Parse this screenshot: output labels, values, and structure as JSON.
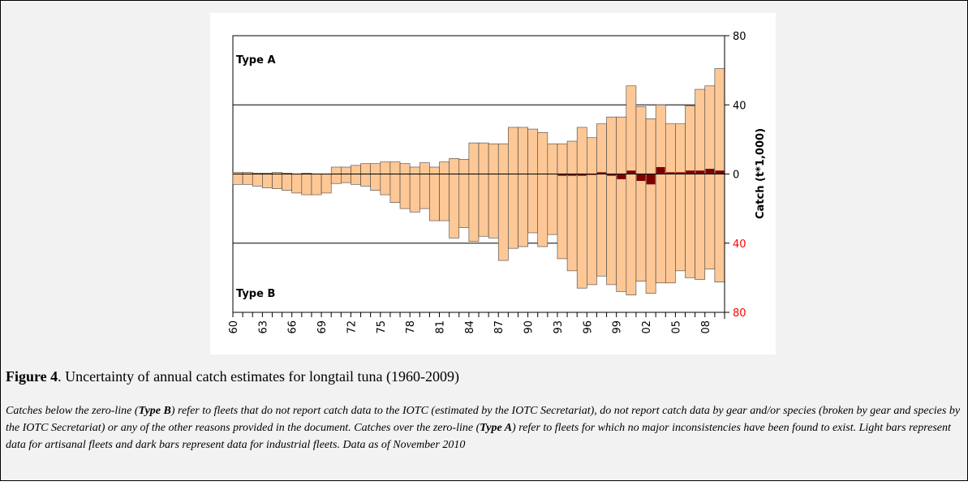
{
  "chart_data": {
    "type": "bar",
    "categories": [
      "60",
      null,
      null,
      "63",
      null,
      null,
      "66",
      null,
      null,
      "69",
      null,
      null,
      "72",
      null,
      null,
      "75",
      null,
      null,
      "78",
      null,
      null,
      "81",
      null,
      null,
      "84",
      null,
      null,
      "87",
      null,
      null,
      "90",
      null,
      null,
      "93",
      null,
      null,
      "96",
      null,
      null,
      "99",
      null,
      null,
      "02",
      null,
      null,
      "05",
      null,
      null,
      "08",
      null
    ],
    "series": [
      {
        "color": "#fdc896",
        "values": [
          1,
          1,
          0.5,
          0.5,
          1,
          0.5,
          0,
          0.5,
          0,
          0,
          4,
          4,
          5,
          6,
          6,
          7,
          7,
          6,
          4,
          6.5,
          4,
          7,
          9,
          8.5,
          18,
          18,
          17.5,
          17.5,
          27,
          27,
          26,
          24,
          17.5,
          17.5,
          19,
          27,
          21,
          29,
          33,
          33,
          51,
          39,
          32,
          40,
          29,
          29,
          39.5,
          49,
          51,
          61
        ]
      },
      {
        "color": "#fdc896",
        "values": [
          -6,
          -6,
          -7,
          -8,
          -8.5,
          -9.5,
          -11,
          -12,
          -12,
          -11,
          -5.5,
          -5,
          -6,
          -7,
          -9.5,
          -12,
          -16.5,
          -20,
          -22,
          -20,
          -27,
          -27,
          -37,
          -31,
          -39,
          -36,
          -37,
          -50,
          -43,
          -42,
          -34,
          -42,
          -35,
          -49,
          -56,
          -66,
          -64,
          -59,
          -64,
          -68,
          -70,
          -62,
          -69,
          -63,
          -63,
          -56,
          -60,
          -61,
          -55,
          -62.5
        ]
      },
      {
        "color": "#7f0000",
        "values": [
          0,
          0,
          0,
          0,
          0,
          0,
          0,
          0,
          0,
          0,
          0,
          0,
          0,
          0,
          0,
          0,
          0,
          0,
          0,
          0,
          0,
          0,
          0,
          0,
          0,
          0,
          0,
          0,
          0,
          0,
          0,
          0,
          0,
          -1,
          -1,
          -1,
          -0.5,
          1,
          -1,
          -3,
          2,
          -4,
          -6,
          4,
          1,
          1,
          2,
          2,
          3,
          2
        ]
      }
    ],
    "ylim": [
      -80,
      80
    ],
    "yticks": [
      {
        "value": -80,
        "label": "80"
      },
      {
        "value": -40,
        "label": "40"
      },
      0,
      40,
      80
    ],
    "negative_tick_color": "#ff0000",
    "ylabel": "Catch (t*1,000)",
    "annotations": [
      "Type A",
      "Type B"
    ],
    "grid": true
  },
  "figure": {
    "label": "Figure 4",
    "title": ". Uncertainty of annual catch estimates for longtail tuna (1960-2009)"
  },
  "caption": [
    "Catches below the zero-line (",
    "Type B",
    ") refer to fleets that do not report catch data to the IOTC (estimated by the IOTC Secretariat), do not report catch data by gear and/or species (broken by gear and species by the IOTC Secretariat) or any of the other reasons provided in the document. Catches over the zero-line (",
    "Type A",
    ") refer to fleets for which no major inconsistencies have been found to exist. Light bars represent data for artisanal fleets and dark bars represent data for industrial fleets. Data as of November 2010"
  ]
}
